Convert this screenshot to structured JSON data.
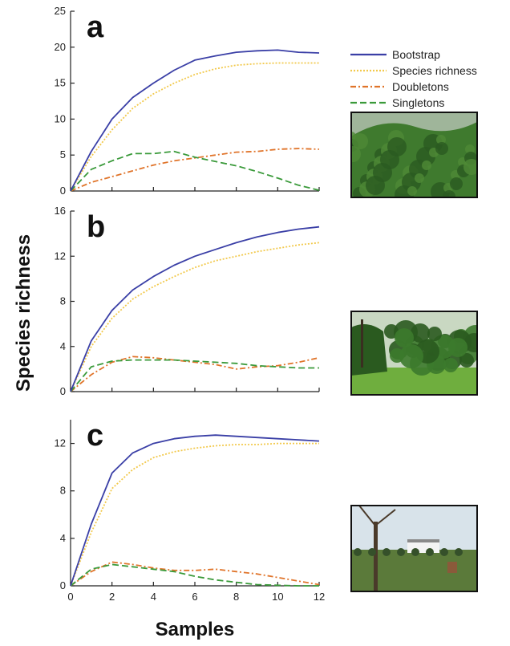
{
  "figure": {
    "y_axis_title": "Species richness",
    "x_axis_title": "Samples"
  },
  "chart_data": [
    {
      "panel": "a",
      "type": "line",
      "ylim": [
        0,
        25
      ],
      "yticks": [
        0,
        5,
        10,
        15,
        20,
        25
      ],
      "xlim": [
        0,
        12
      ],
      "xticks": [
        0,
        2,
        4,
        6,
        8,
        10,
        12
      ],
      "x": [
        0,
        1,
        2,
        3,
        4,
        5,
        6,
        7,
        8,
        9,
        10,
        11,
        12
      ],
      "series": [
        {
          "name": "Bootstrap",
          "color": "#3a3fa6",
          "dash": "solid",
          "values": [
            0,
            5.5,
            10,
            13,
            15,
            16.8,
            18.2,
            18.8,
            19.3,
            19.5,
            19.6,
            19.3,
            19.2
          ]
        },
        {
          "name": "Species richness",
          "color": "#f2c94c",
          "dash": "dotted",
          "values": [
            0,
            4.8,
            8.5,
            11.5,
            13.5,
            15,
            16.2,
            17,
            17.5,
            17.7,
            17.8,
            17.8,
            17.8
          ]
        },
        {
          "name": "Doubletons",
          "color": "#e0742a",
          "dash": "dashdot",
          "values": [
            0,
            1.2,
            2.0,
            2.8,
            3.6,
            4.2,
            4.6,
            5.0,
            5.4,
            5.5,
            5.8,
            5.9,
            5.8
          ]
        },
        {
          "name": "Singletons",
          "color": "#3a9a3a",
          "dash": "dashed",
          "values": [
            0,
            3.0,
            4.2,
            5.2,
            5.2,
            5.5,
            4.7,
            4.1,
            3.5,
            2.7,
            1.8,
            0.8,
            0.1
          ]
        }
      ]
    },
    {
      "panel": "b",
      "type": "line",
      "ylim": [
        0,
        16
      ],
      "yticks": [
        0,
        4,
        8,
        12,
        16
      ],
      "xlim": [
        0,
        12
      ],
      "xticks": [
        0,
        2,
        4,
        6,
        8,
        10,
        12
      ],
      "x": [
        0,
        1,
        2,
        3,
        4,
        5,
        6,
        7,
        8,
        9,
        10,
        11,
        12
      ],
      "series": [
        {
          "name": "Bootstrap",
          "color": "#3a3fa6",
          "dash": "solid",
          "values": [
            0,
            4.5,
            7.2,
            9.0,
            10.2,
            11.2,
            12.0,
            12.6,
            13.2,
            13.7,
            14.1,
            14.4,
            14.6
          ]
        },
        {
          "name": "Species richness",
          "color": "#f2c94c",
          "dash": "dotted",
          "values": [
            0,
            4.0,
            6.5,
            8.2,
            9.3,
            10.2,
            11.0,
            11.6,
            12.0,
            12.4,
            12.7,
            13.0,
            13.2
          ]
        },
        {
          "name": "Doubletons",
          "color": "#e0742a",
          "dash": "dashdot",
          "values": [
            0,
            1.5,
            2.6,
            3.1,
            3.0,
            2.8,
            2.6,
            2.4,
            2.0,
            2.2,
            2.3,
            2.6,
            3.0
          ]
        },
        {
          "name": "Singletons",
          "color": "#3a9a3a",
          "dash": "dashed",
          "values": [
            0,
            2.2,
            2.7,
            2.8,
            2.8,
            2.8,
            2.7,
            2.6,
            2.5,
            2.3,
            2.2,
            2.1,
            2.1
          ]
        }
      ]
    },
    {
      "panel": "c",
      "type": "line",
      "ylim": [
        0,
        14
      ],
      "yticks": [
        0,
        4,
        8,
        12
      ],
      "xlim": [
        0,
        12
      ],
      "xticks": [
        0,
        2,
        4,
        6,
        8,
        10,
        12
      ],
      "x": [
        0,
        1,
        2,
        3,
        4,
        5,
        6,
        7,
        8,
        9,
        10,
        11,
        12
      ],
      "series": [
        {
          "name": "Bootstrap",
          "color": "#3a3fa6",
          "dash": "solid",
          "values": [
            0,
            5.2,
            9.5,
            11.2,
            12.0,
            12.4,
            12.6,
            12.7,
            12.6,
            12.5,
            12.4,
            12.3,
            12.2
          ]
        },
        {
          "name": "Species richness",
          "color": "#f2c94c",
          "dash": "dotted",
          "values": [
            0,
            4.5,
            8.2,
            9.8,
            10.8,
            11.3,
            11.6,
            11.8,
            11.9,
            11.9,
            12.0,
            12.0,
            12.0
          ]
        },
        {
          "name": "Doubletons",
          "color": "#e0742a",
          "dash": "dashdot",
          "values": [
            0,
            1.2,
            2.0,
            1.8,
            1.5,
            1.3,
            1.3,
            1.4,
            1.2,
            1.0,
            0.7,
            0.4,
            0.1
          ]
        },
        {
          "name": "Singletons",
          "color": "#3a9a3a",
          "dash": "dashed",
          "values": [
            0,
            1.4,
            1.8,
            1.6,
            1.4,
            1.2,
            0.8,
            0.5,
            0.3,
            0.1,
            0.05,
            0.0,
            0.0
          ]
        }
      ]
    }
  ],
  "photos": [
    {
      "panel": "a",
      "icon": "hillside-forest-photo",
      "sky": "#9fb59a",
      "canopy": "#3f7a2e",
      "canopy_dark": "#2b5a20",
      "ground": "#4f8a36"
    },
    {
      "panel": "b",
      "icon": "forest-edge-photo",
      "sky": "#c9d8c2",
      "canopy": "#3c7a2c",
      "canopy_dark": "#2a5a1f",
      "ground": "#6fae3e"
    },
    {
      "panel": "c",
      "icon": "pasture-photo",
      "sky": "#d8e3ea",
      "canopy": "#4b6b36",
      "canopy_dark": "#35502a",
      "ground": "#5b7a3a"
    }
  ]
}
